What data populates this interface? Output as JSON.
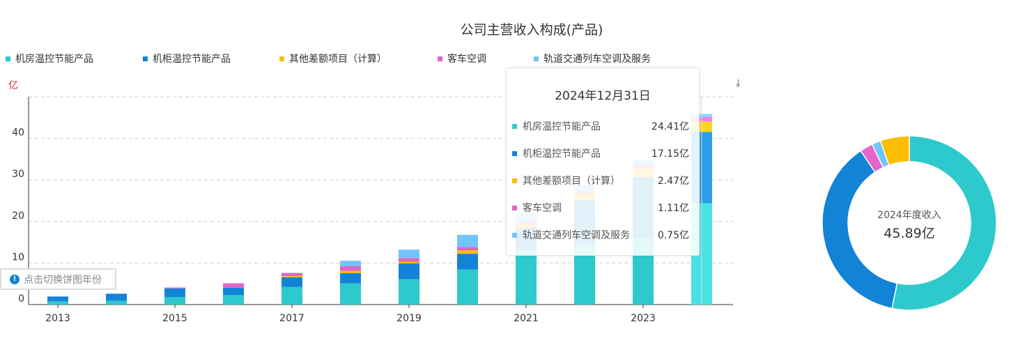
{
  "title": "公司主营收入构成(产品)",
  "switch_label": "点击切换饼图年份",
  "download_icon": "download-icon",
  "tooltip": {
    "title": "2024年12月31日",
    "rows": [
      {
        "name": "机房温控节能产品",
        "value": "24.41亿"
      },
      {
        "name": "机柜温控节能产品",
        "value": "17.15亿"
      },
      {
        "name": "其他差额项目（计算）",
        "value": "2.47亿"
      },
      {
        "name": "客车空调",
        "value": "1.11亿"
      },
      {
        "name": "轨道交通列车空调及服务",
        "value": "0.75亿"
      }
    ]
  },
  "donut": {
    "label": "2024年度收入",
    "total": "45.89亿"
  },
  "chart_data": {
    "type": "bar",
    "stacked": true,
    "title": "公司主营收入构成(产品)",
    "ylabel": "亿",
    "ylim": [
      0,
      50
    ],
    "yticks": [
      "0",
      "10",
      "20",
      "30",
      "40"
    ],
    "categories": [
      "2013",
      "2014",
      "2015",
      "2016",
      "2017",
      "2018",
      "2019",
      "2020",
      "2021",
      "2022",
      "2023",
      "2024"
    ],
    "xtick_labels": [
      "2013",
      "2015",
      "2017",
      "2019",
      "2021",
      "2023"
    ],
    "legend_position": "top-left",
    "series": [
      {
        "name": "机房温控节能产品",
        "color": "#2ec9cc",
        "values": [
          0.78,
          0.94,
          1.78,
          2.28,
          4.28,
          5.11,
          6.11,
          8.44,
          13.0,
          14.3,
          16.1,
          24.41
        ]
      },
      {
        "name": "机柜温控节能产品",
        "color": "#1283d6",
        "values": [
          1.16,
          1.67,
          2.11,
          1.78,
          2.28,
          2.44,
          3.78,
          3.78,
          5.5,
          10.8,
          14.6,
          17.15
        ]
      },
      {
        "name": "其他差额项目（计算）",
        "color": "#fdbd00",
        "values": [
          0,
          0,
          0,
          0,
          0.28,
          0.56,
          0.39,
          0.83,
          0.8,
          1.7,
          2.2,
          2.47
        ]
      },
      {
        "name": "客车空调",
        "color": "#e066c9",
        "values": [
          0,
          0,
          0.22,
          1.06,
          0.78,
          1.11,
          0.89,
          0.78,
          0.7,
          0.5,
          0.9,
          1.11
        ]
      },
      {
        "name": "轨道交通列车空调及服务",
        "color": "#73c4fb",
        "values": [
          0,
          0,
          0,
          0,
          0,
          1.33,
          2.06,
          2.94,
          1.9,
          1.5,
          1.1,
          0.75
        ]
      }
    ],
    "pie": {
      "year": "2024",
      "values": [
        24.41,
        17.15,
        2.47,
        1.11,
        0.75
      ]
    }
  }
}
